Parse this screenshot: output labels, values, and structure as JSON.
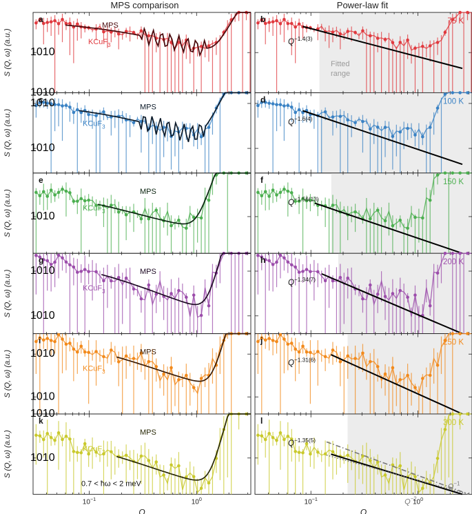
{
  "figure": {
    "left_title": "MPS comparison",
    "right_title": "Power-law fit",
    "xlabel": "Q",
    "ylabel": "S (Q, ω) (a.u.)",
    "energy_window": "0.7 < ħω < 2 meV",
    "fitted_range_label": [
      "Fitted",
      "range"
    ]
  },
  "chart_data": {
    "type": "line",
    "xscale": "log",
    "yscale": "log",
    "xlim": [
      0.03,
      3.2
    ],
    "x_ticks": [
      {
        "value": 0.1,
        "label": "10"
      },
      {
        "value": 1,
        "label": "10"
      }
    ],
    "x_tick_sup": [
      "−1",
      "0"
    ],
    "series_labels": {
      "data": "KCuF",
      "data_sub": "3",
      "model": "MPS"
    },
    "rows": [
      {
        "temperature": "75 K",
        "color": "#e0393e",
        "model_color": "#4a0a0d",
        "panel_left": "a",
        "panel_right": "b",
        "ylim": [
          0.0001,
          1
        ],
        "y_ticks": [
          {
            "value": 0.01,
            "label": "10",
            "sup": "−2"
          },
          {
            "value": 0.0001,
            "label": "10",
            "sup": "−4"
          }
        ],
        "peak": 0.35,
        "min_q": 0.85,
        "min_val": 0.00015,
        "alpha": 1.4,
        "fit_label": "Q",
        "fit_exponent": "−1.4(3)",
        "fit_range": [
          0.12,
          3.0
        ],
        "mps_range": [
          0.06,
          3.2
        ],
        "seed": 11
      },
      {
        "temperature": "100 K",
        "color": "#3a82c4",
        "model_color": "#0d1b2a",
        "panel_left": "c",
        "panel_right": "d",
        "ylim": [
          8e-05,
          0.3
        ],
        "y_ticks": [
          {
            "value": 0.1,
            "label": "10",
            "sup": "−1"
          },
          {
            "value": 0.001,
            "label": "10",
            "sup": "−3"
          }
        ],
        "peak": 0.09,
        "min_q": 0.95,
        "min_val": 0.0013,
        "alpha": 1.6,
        "fit_label": "Q",
        "fit_exponent": "−1.6(4)",
        "fit_range": [
          0.12,
          3.0
        ],
        "mps_range": [
          0.08,
          3.2
        ],
        "seed": 23
      },
      {
        "temperature": "150 K",
        "color": "#4caf50",
        "model_color": "#0b2410",
        "panel_left": "e",
        "panel_right": "f",
        "ylim": [
          0.0008,
          0.2
        ],
        "y_ticks": [
          {
            "value": 0.01,
            "label": "10",
            "sup": "−2"
          }
        ],
        "peak": 0.05,
        "min_q": 1.0,
        "min_val": 0.0085,
        "alpha": 1.56,
        "fit_label": "Q",
        "fit_exponent": "−1.56(13)",
        "fit_range": [
          0.155,
          3.0
        ],
        "mps_range": [
          0.12,
          3.2
        ],
        "seed": 37
      },
      {
        "temperature": "200 K",
        "color": "#9c4dab",
        "model_color": "#1e0a24",
        "panel_left": "g",
        "panel_right": "h",
        "ylim": [
          0.004,
          0.25
        ],
        "y_ticks": [
          {
            "value": 0.1,
            "label": "10",
            "sup": "−1"
          },
          {
            "value": 0.01,
            "label": "10",
            "sup": "−2"
          }
        ],
        "peak": 0.18,
        "min_q": 1.2,
        "min_val": 0.016,
        "alpha": 1.34,
        "fit_label": "Q",
        "fit_exponent": "−1.34(7)",
        "fit_range": [
          0.18,
          3.0
        ],
        "mps_range": [
          0.13,
          3.2
        ],
        "seed": 51
      },
      {
        "temperature": "250 K",
        "color": "#f28a1c",
        "model_color": "#3a1b04",
        "panel_left": "i",
        "panel_right": "j",
        "ylim": [
          0.004,
          0.3
        ],
        "y_ticks": [
          {
            "value": 0.1,
            "label": "10",
            "sup": "−1"
          },
          {
            "value": 0.01,
            "label": "10",
            "sup": "−2"
          }
        ],
        "peak": 0.22,
        "min_q": 1.35,
        "min_val": 0.025,
        "alpha": 1.31,
        "fit_label": "Q",
        "fit_exponent": "−1.31(6)",
        "fit_range": [
          0.22,
          3.0
        ],
        "mps_range": [
          0.18,
          3.2
        ],
        "seed": 67
      },
      {
        "temperature": "300 K",
        "color": "#c9c92c",
        "model_color": "#2a2a08",
        "panel_left": "k",
        "panel_right": "l",
        "ylim": [
          0.015,
          1
        ],
        "y_ticks": [
          {
            "value": 1,
            "label": "10",
            "sup": "0"
          },
          {
            "value": 0.1,
            "label": "10",
            "sup": "−1"
          }
        ],
        "peak": 0.28,
        "min_q": 1.3,
        "min_val": 0.038,
        "alpha": 1.35,
        "fit_label": "Q",
        "fit_exponent": "−1.35(5)",
        "fit_range": [
          0.22,
          3.0
        ],
        "mps_range": [
          0.18,
          3.2
        ],
        "seed": 83,
        "guides": [
          {
            "label": "Q",
            "exponent": "−1",
            "power": 1,
            "style": "dotted"
          },
          {
            "label": "Q",
            "exponent": "−2",
            "power": 2,
            "style": "dashdot"
          }
        ]
      }
    ]
  }
}
